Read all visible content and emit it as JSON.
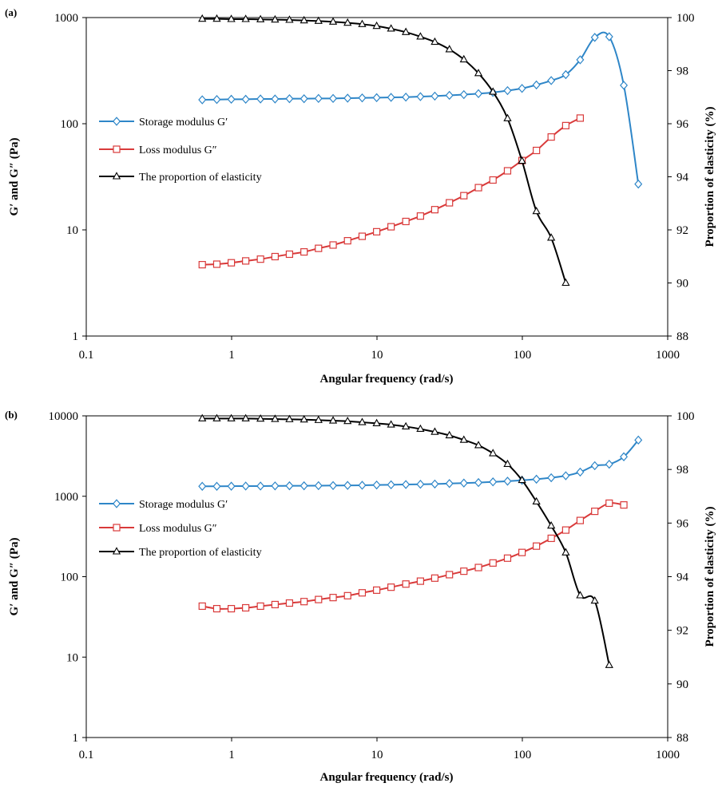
{
  "colors": {
    "storage": "#2e86c8",
    "loss": "#d93a3a",
    "elasticity": "#000000"
  },
  "chart_data": [
    {
      "type": "line",
      "panel_label": "(a)",
      "xlabel": "Angular frequency (rad/s)",
      "ylabel_left": "G′ and G″ (Pa)",
      "ylabel_right": "Proportion of elasticity (%)",
      "x_scale": "log",
      "y_left_scale": "log",
      "xlim": [
        0.1,
        1000
      ],
      "ylim_left": [
        1,
        1000
      ],
      "ylim_right": [
        88,
        100
      ],
      "x_ticks": [
        "0.1",
        "1",
        "10",
        "100",
        "1000"
      ],
      "y_left_ticks": [
        "1",
        "10",
        "100",
        "1000"
      ],
      "y_right_ticks": [
        "88",
        "90",
        "92",
        "94",
        "96",
        "98",
        "100"
      ],
      "legend_position": "middle-left",
      "series": [
        {
          "name": "Storage modulus G′",
          "axis": "left",
          "marker": "diamond",
          "color_key": "storage",
          "x": [
            0.628,
            0.791,
            0.995,
            1.25,
            1.58,
            1.99,
            2.5,
            3.15,
            3.96,
            4.99,
            6.28,
            7.91,
            9.95,
            12.5,
            15.8,
            19.9,
            25,
            31.5,
            39.6,
            49.9,
            62.8,
            79.1,
            99.5,
            125,
            158,
            199,
            250,
            315,
            396,
            499,
            628
          ],
          "y": [
            168,
            169,
            170,
            170,
            171,
            171,
            172,
            172,
            173,
            173,
            174,
            175,
            176,
            177,
            178,
            180,
            182,
            185,
            188,
            192,
            197,
            205,
            215,
            232,
            255,
            290,
            400,
            650,
            660,
            230,
            27
          ]
        },
        {
          "name": "Loss modulus G″",
          "axis": "left",
          "marker": "square",
          "color_key": "loss",
          "x": [
            0.628,
            0.791,
            0.995,
            1.25,
            1.58,
            1.99,
            2.5,
            3.15,
            3.96,
            4.99,
            6.28,
            7.91,
            9.95,
            12.5,
            15.8,
            19.9,
            25,
            31.5,
            39.6,
            49.9,
            62.8,
            79.1,
            99.5,
            125,
            158,
            199,
            250
          ],
          "y": [
            4.7,
            4.75,
            4.9,
            5.1,
            5.3,
            5.6,
            5.9,
            6.2,
            6.7,
            7.2,
            7.9,
            8.7,
            9.6,
            10.7,
            12,
            13.5,
            15.5,
            18,
            21,
            25,
            29.5,
            36,
            45,
            56,
            75,
            96,
            113
          ]
        },
        {
          "name": "The proportion of elasticity",
          "axis": "right",
          "marker": "triangle",
          "color_key": "elasticity",
          "x": [
            0.628,
            0.791,
            0.995,
            1.25,
            1.58,
            1.99,
            2.5,
            3.15,
            3.96,
            4.99,
            6.28,
            7.91,
            9.95,
            12.5,
            15.8,
            19.9,
            25,
            31.5,
            39.6,
            49.9,
            62.8,
            79.1,
            99.5,
            125,
            158,
            199
          ],
          "y": [
            99.95,
            99.95,
            99.94,
            99.94,
            99.93,
            99.92,
            99.91,
            99.89,
            99.87,
            99.84,
            99.8,
            99.75,
            99.68,
            99.58,
            99.45,
            99.28,
            99.08,
            98.8,
            98.42,
            97.9,
            97.2,
            96.2,
            94.6,
            92.7,
            91.7,
            90.0
          ]
        }
      ]
    },
    {
      "type": "line",
      "panel_label": "(b)",
      "xlabel": "Angular frequency (rad/s)",
      "ylabel_left": "G′ and G″ (Pa)",
      "ylabel_right": "Proportion of elasticity (%)",
      "x_scale": "log",
      "y_left_scale": "log",
      "xlim": [
        0.1,
        1000
      ],
      "ylim_left": [
        1,
        10000
      ],
      "ylim_right": [
        88,
        100
      ],
      "x_ticks": [
        "0.1",
        "1",
        "10",
        "100",
        "1000"
      ],
      "y_left_ticks": [
        "1",
        "10",
        "100",
        "1000",
        "10000"
      ],
      "y_right_ticks": [
        "88",
        "90",
        "92",
        "94",
        "96",
        "98",
        "100"
      ],
      "legend_position": "middle-left",
      "series": [
        {
          "name": "Storage modulus G′",
          "axis": "left",
          "marker": "diamond",
          "color_key": "storage",
          "x": [
            0.628,
            0.791,
            0.995,
            1.25,
            1.58,
            1.99,
            2.5,
            3.15,
            3.96,
            4.99,
            6.28,
            7.91,
            9.95,
            12.5,
            15.8,
            19.9,
            25,
            31.5,
            39.6,
            49.9,
            62.8,
            79.1,
            99.5,
            125,
            158,
            199,
            250,
            315,
            396,
            499,
            628
          ],
          "y": [
            1330,
            1330,
            1335,
            1340,
            1340,
            1345,
            1350,
            1350,
            1355,
            1360,
            1365,
            1370,
            1380,
            1390,
            1400,
            1410,
            1420,
            1440,
            1460,
            1480,
            1510,
            1540,
            1580,
            1630,
            1700,
            1800,
            2000,
            2400,
            2500,
            3100,
            5000
          ]
        },
        {
          "name": "Loss modulus G″",
          "axis": "left",
          "marker": "square",
          "color_key": "loss",
          "x": [
            0.628,
            0.791,
            0.995,
            1.25,
            1.58,
            1.99,
            2.5,
            3.15,
            3.96,
            4.99,
            6.28,
            7.91,
            9.95,
            12.5,
            15.8,
            19.9,
            25,
            31.5,
            39.6,
            49.9,
            62.8,
            79.1,
            99.5,
            125,
            158,
            199,
            250,
            315,
            396,
            499
          ],
          "y": [
            43,
            40,
            40,
            41,
            43,
            45,
            47,
            49,
            52,
            55,
            58,
            63,
            68,
            74,
            81,
            88,
            96,
            106,
            117,
            130,
            148,
            170,
            200,
            240,
            300,
            380,
            500,
            650,
            820,
            780
          ]
        },
        {
          "name": "The proportion of elasticity",
          "axis": "right",
          "marker": "triangle",
          "color_key": "elasticity",
          "x": [
            0.628,
            0.791,
            0.995,
            1.25,
            1.58,
            1.99,
            2.5,
            3.15,
            3.96,
            4.99,
            6.28,
            7.91,
            9.95,
            12.5,
            15.8,
            19.9,
            25,
            31.5,
            39.6,
            49.9,
            62.8,
            79.1,
            99.5,
            125,
            158,
            199,
            250,
            315,
            396
          ],
          "y": [
            99.9,
            99.9,
            99.9,
            99.9,
            99.89,
            99.88,
            99.87,
            99.86,
            99.84,
            99.82,
            99.8,
            99.76,
            99.72,
            99.67,
            99.6,
            99.51,
            99.4,
            99.27,
            99.1,
            98.9,
            98.6,
            98.2,
            97.6,
            96.8,
            95.9,
            94.9,
            93.3,
            93.1,
            90.7
          ]
        }
      ]
    }
  ]
}
